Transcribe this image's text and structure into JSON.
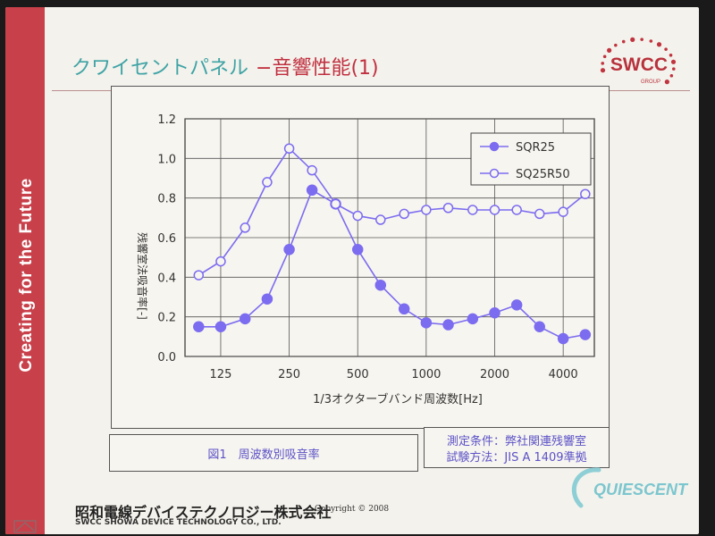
{
  "sidebar": {
    "text": "Creating for the Future"
  },
  "title": {
    "main": "クワイセントパネル",
    "sub": "−音響性能(1)"
  },
  "logo": {
    "name": "SWCC",
    "group": "GROUP"
  },
  "chart_data": {
    "type": "line",
    "xlabel": "1/3オクターブバンド周波数[Hz]",
    "ylabel": "残響室法吸音率[-]",
    "ylim": [
      0,
      1.2
    ],
    "y_ticks": [
      "0.0",
      "0.2",
      "0.4",
      "0.6",
      "0.8",
      "1.0",
      "1.2"
    ],
    "x_ticks": [
      "125",
      "250",
      "500",
      "1000",
      "2000",
      "4000"
    ],
    "x_scale": "log",
    "grid": true,
    "legend_position": "top-right",
    "x": [
      100,
      125,
      160,
      200,
      250,
      315,
      400,
      500,
      630,
      800,
      1000,
      1250,
      1600,
      2000,
      2500,
      3150,
      4000,
      5000
    ],
    "series": [
      {
        "name": "SQR25",
        "marker": "filled-circle",
        "values": [
          0.15,
          0.15,
          0.19,
          0.29,
          0.54,
          0.84,
          0.77,
          0.54,
          0.36,
          0.24,
          0.17,
          0.16,
          0.19,
          0.22,
          0.26,
          0.15,
          0.09,
          0.11
        ]
      },
      {
        "name": "SQ25R50",
        "marker": "open-circle",
        "values": [
          0.41,
          0.48,
          0.65,
          0.88,
          1.05,
          0.94,
          0.77,
          0.71,
          0.69,
          0.72,
          0.74,
          0.75,
          0.74,
          0.74,
          0.74,
          0.72,
          0.73,
          0.82
        ]
      }
    ],
    "line_color": "#7b6cf0"
  },
  "caption": "図1　周波数別吸音率",
  "conditions": {
    "line1": "測定条件：弊社関連残響室",
    "line2": "試験方法：JIS A 1409準拠"
  },
  "footer": {
    "company_ja": "昭和電線デバイステクノロジー株式会社",
    "company_en": "SWCC SHOWA DEVICE TECHNOLOGY CO., LTD.",
    "copyright": "Copyright © 2008"
  },
  "brand": {
    "name": "QUIESCENT"
  }
}
